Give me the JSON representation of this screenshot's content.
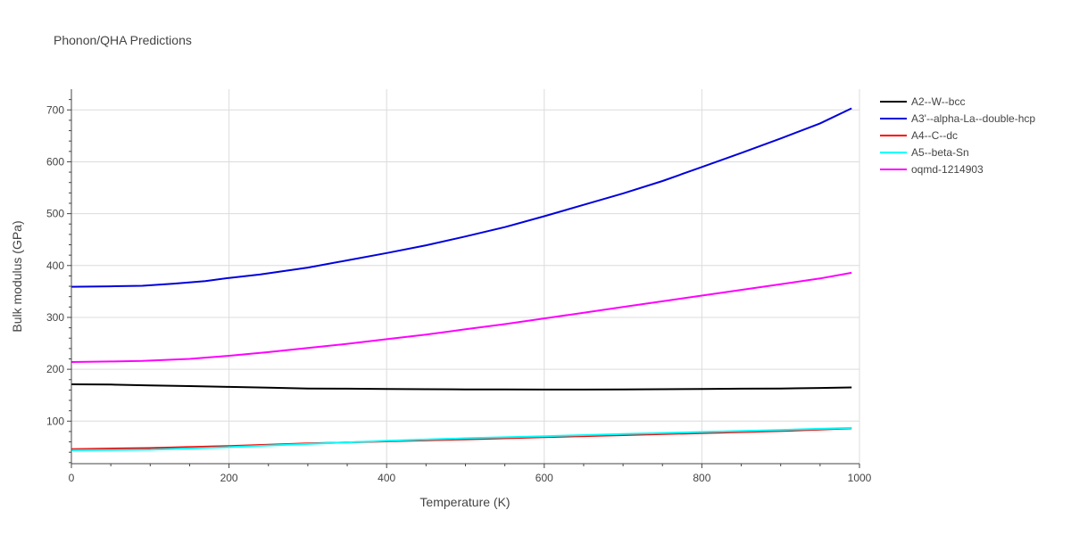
{
  "chart_data": {
    "type": "line",
    "title": "Phonon/QHA Predictions",
    "xlabel": "Temperature (K)",
    "ylabel": "Bulk modulus (GPa)",
    "xlim": [
      0,
      1000
    ],
    "ylim": [
      18,
      740
    ],
    "x_ticks": [
      0,
      200,
      400,
      600,
      800,
      1000
    ],
    "y_ticks": [
      100,
      200,
      300,
      400,
      500,
      600,
      700
    ],
    "grid": true,
    "legend_position": "top-right",
    "series": [
      {
        "name": "A2--W--bcc",
        "color": "#000000",
        "x": [
          0,
          50,
          100,
          150,
          200,
          250,
          300,
          350,
          400,
          450,
          500,
          550,
          600,
          650,
          700,
          750,
          800,
          850,
          900,
          950,
          990
        ],
        "y": [
          171,
          170.5,
          169,
          167.5,
          166,
          164.5,
          163,
          162.5,
          162,
          161.5,
          161.2,
          161,
          160.8,
          160.8,
          161,
          161.5,
          162,
          162.5,
          163,
          164,
          165
        ]
      },
      {
        "name": "A3'--alpha-La--double-hcp",
        "color": "#0000dd",
        "x": [
          0,
          50,
          90,
          130,
          170,
          200,
          240,
          300,
          350,
          400,
          450,
          500,
          550,
          600,
          650,
          700,
          750,
          800,
          850,
          900,
          950,
          990
        ],
        "y": [
          359,
          360,
          361,
          365,
          370,
          376,
          383,
          396,
          410,
          424,
          439,
          456,
          474,
          495,
          517,
          539,
          563,
          590,
          617,
          645,
          674,
          703
        ]
      },
      {
        "name": "A4--C--dc",
        "color": "#ff0000",
        "x": [
          0,
          100,
          200,
          300,
          400,
          500,
          600,
          700,
          800,
          900,
          990
        ],
        "y": [
          46,
          48,
          52,
          57,
          61,
          65,
          69,
          73,
          77,
          81,
          86
        ]
      },
      {
        "name": "A5--beta-Sn",
        "color": "#00ffff",
        "x": [
          0,
          100,
          200,
          300,
          400,
          500,
          600,
          700,
          800,
          900,
          990
        ],
        "y": [
          44,
          45,
          50,
          56,
          62,
          67,
          71,
          75,
          79,
          83,
          87
        ]
      },
      {
        "name": "oqmd-1214903",
        "color": "#ff00ff",
        "x": [
          0,
          50,
          90,
          150,
          200,
          250,
          300,
          350,
          400,
          450,
          500,
          550,
          600,
          650,
          700,
          750,
          800,
          850,
          900,
          950,
          990
        ],
        "y": [
          214,
          215,
          216,
          220,
          226,
          233,
          241,
          249,
          258,
          267,
          277,
          287,
          298,
          309,
          320,
          331,
          342,
          353,
          364,
          375,
          386
        ]
      }
    ]
  }
}
